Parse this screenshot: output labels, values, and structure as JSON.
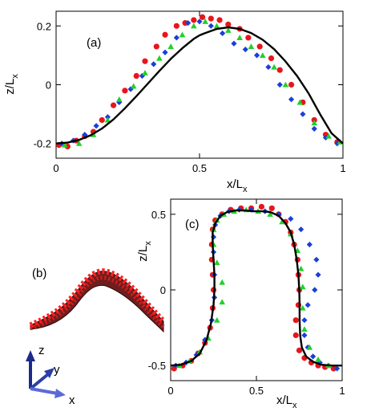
{
  "chart_data": [
    {
      "panel_label": "(a)",
      "type": "scatter",
      "xlabel_main": "x/L",
      "xlabel_sub": "x",
      "ylabel_main": "z/L",
      "ylabel_sub": "x",
      "xlim": [
        0,
        1
      ],
      "ylim": [
        -0.25,
        0.25
      ],
      "xticks": [
        {
          "value": 0,
          "label": "0"
        },
        {
          "value": 0.5,
          "label": "0.5"
        },
        {
          "value": 1,
          "label": "1"
        }
      ],
      "yticks": [
        {
          "value": -0.2,
          "label": "-0.2"
        },
        {
          "value": 0,
          "label": "0"
        },
        {
          "value": 0.2,
          "label": "0.2"
        }
      ],
      "grid": false,
      "curve": {
        "color": "#000000",
        "x": [
          0,
          0.04,
          0.08,
          0.12,
          0.16,
          0.2,
          0.24,
          0.28,
          0.32,
          0.36,
          0.4,
          0.44,
          0.48,
          0.5,
          0.52,
          0.56,
          0.6,
          0.64,
          0.68,
          0.72,
          0.76,
          0.8,
          0.84,
          0.88,
          0.92,
          0.96,
          1.0
        ],
        "y": [
          -0.2,
          -0.197,
          -0.188,
          -0.172,
          -0.149,
          -0.118,
          -0.08,
          -0.039,
          0.004,
          0.047,
          0.088,
          0.124,
          0.156,
          0.168,
          0.176,
          0.19,
          0.195,
          0.19,
          0.176,
          0.153,
          0.121,
          0.079,
          0.03,
          -0.029,
          -0.1,
          -0.165,
          -0.2
        ]
      },
      "series": [
        {
          "marker": "circle",
          "color": "#e8151b",
          "x": [
            0.01,
            0.04,
            0.07,
            0.1,
            0.13,
            0.16,
            0.2,
            0.24,
            0.28,
            0.31,
            0.35,
            0.38,
            0.42,
            0.45,
            0.48,
            0.51,
            0.54,
            0.57,
            0.6,
            0.64,
            0.67,
            0.71,
            0.75,
            0.78,
            0.82,
            0.86,
            0.9,
            0.94,
            0.98
          ],
          "y": [
            -0.205,
            -0.21,
            -0.19,
            -0.175,
            -0.16,
            -0.12,
            -0.07,
            -0.02,
            0.03,
            0.08,
            0.13,
            0.17,
            0.2,
            0.21,
            0.22,
            0.23,
            0.225,
            0.22,
            0.205,
            0.19,
            0.16,
            0.13,
            0.09,
            0.05,
            0.0,
            -0.06,
            -0.12,
            -0.17,
            -0.195
          ]
        },
        {
          "marker": "diamond",
          "color": "#1a3fd8",
          "x": [
            0.02,
            0.06,
            0.1,
            0.14,
            0.18,
            0.22,
            0.26,
            0.3,
            0.34,
            0.38,
            0.42,
            0.46,
            0.5,
            0.54,
            0.58,
            0.62,
            0.66,
            0.7,
            0.74,
            0.78,
            0.82,
            0.86,
            0.9,
            0.94,
            0.98
          ],
          "y": [
            -0.2,
            -0.19,
            -0.17,
            -0.14,
            -0.11,
            -0.06,
            -0.015,
            0.03,
            0.07,
            0.11,
            0.16,
            0.21,
            0.215,
            0.2,
            0.175,
            0.14,
            0.12,
            0.1,
            0.06,
            0.0,
            -0.05,
            -0.1,
            -0.15,
            -0.18,
            -0.2
          ]
        },
        {
          "marker": "triangle",
          "color": "#22d028",
          "x": [
            0.03,
            0.08,
            0.13,
            0.18,
            0.22,
            0.27,
            0.31,
            0.36,
            0.4,
            0.44,
            0.48,
            0.52,
            0.56,
            0.6,
            0.64,
            0.68,
            0.72,
            0.76,
            0.8,
            0.85,
            0.9,
            0.95,
            0.99
          ],
          "y": [
            -0.205,
            -0.2,
            -0.17,
            -0.12,
            -0.05,
            -0.005,
            0.04,
            0.09,
            0.13,
            0.17,
            0.2,
            0.215,
            0.2,
            0.185,
            0.16,
            0.13,
            0.1,
            0.06,
            0.0,
            -0.06,
            -0.13,
            -0.175,
            -0.195
          ]
        }
      ]
    },
    {
      "panel_label": "(b)",
      "type": "sketch",
      "axis_labels": {
        "z": "z",
        "y": "y",
        "x": "x"
      }
    },
    {
      "panel_label": "(c)",
      "type": "scatter",
      "xlabel_main": "x/L",
      "xlabel_sub": "x",
      "ylabel_main": "z/L",
      "ylabel_sub": "x",
      "xlim": [
        0,
        1
      ],
      "ylim": [
        -0.6,
        0.6
      ],
      "xticks": [
        {
          "value": 0,
          "label": "0"
        },
        {
          "value": 0.5,
          "label": "0.5"
        },
        {
          "value": 1,
          "label": "1"
        }
      ],
      "yticks": [
        {
          "value": -0.5,
          "label": "-0.5"
        },
        {
          "value": 0,
          "label": "0"
        },
        {
          "value": 0.5,
          "label": "0.5"
        }
      ],
      "grid": false,
      "curve": {
        "color": "#000000",
        "x": [
          0,
          0.06,
          0.12,
          0.17,
          0.21,
          0.235,
          0.25,
          0.255,
          0.255,
          0.25,
          0.245,
          0.245,
          0.26,
          0.29,
          0.33,
          0.38,
          0.43,
          0.48,
          0.53,
          0.58,
          0.63,
          0.67,
          0.7,
          0.72,
          0.735,
          0.745,
          0.75,
          0.752,
          0.752,
          0.755,
          0.765,
          0.79,
          0.83,
          0.88,
          0.94,
          1.0
        ],
        "z": [
          -0.5,
          -0.495,
          -0.47,
          -0.42,
          -0.33,
          -0.22,
          -0.1,
          0.0,
          0.1,
          0.2,
          0.3,
          0.38,
          0.44,
          0.49,
          0.515,
          0.525,
          0.525,
          0.52,
          0.52,
          0.515,
          0.49,
          0.44,
          0.38,
          0.3,
          0.2,
          0.1,
          0.0,
          -0.1,
          -0.2,
          -0.3,
          -0.38,
          -0.44,
          -0.475,
          -0.495,
          -0.5,
          -0.5
        ]
      },
      "series": [
        {
          "marker": "circle",
          "color": "#e8151b",
          "x": [
            0.02,
            0.07,
            0.12,
            0.16,
            0.2,
            0.23,
            0.245,
            0.25,
            0.245,
            0.24,
            0.24,
            0.245,
            0.26,
            0.3,
            0.35,
            0.41,
            0.47,
            0.53,
            0.59,
            0.63,
            0.67,
            0.7,
            0.72,
            0.74,
            0.745,
            0.75,
            0.745,
            0.73,
            0.73,
            0.75,
            0.78,
            0.82,
            0.86,
            0.9,
            0.95
          ],
          "z": [
            -0.52,
            -0.5,
            -0.47,
            -0.42,
            -0.35,
            -0.25,
            -0.12,
            0.0,
            0.1,
            0.2,
            0.3,
            0.4,
            0.46,
            0.5,
            0.53,
            0.54,
            0.54,
            0.55,
            0.54,
            0.5,
            0.45,
            0.38,
            0.3,
            0.2,
            0.1,
            0.0,
            -0.1,
            -0.2,
            -0.3,
            -0.4,
            -0.45,
            -0.48,
            -0.5,
            -0.51,
            -0.52
          ]
        },
        {
          "marker": "diamond",
          "color": "#1a3fd8",
          "x": [
            0.03,
            0.09,
            0.15,
            0.2,
            0.24,
            0.255,
            0.255,
            0.25,
            0.25,
            0.26,
            0.29,
            0.34,
            0.4,
            0.47,
            0.55,
            0.63,
            0.7,
            0.76,
            0.81,
            0.85,
            0.86,
            0.84,
            0.8,
            0.78,
            0.78,
            0.8,
            0.83,
            0.87,
            0.92,
            0.97
          ],
          "z": [
            -0.5,
            -0.48,
            -0.43,
            -0.33,
            -0.2,
            -0.05,
            0.1,
            0.25,
            0.35,
            0.43,
            0.49,
            0.52,
            0.53,
            0.53,
            0.52,
            0.5,
            0.47,
            0.4,
            0.3,
            0.2,
            0.1,
            0.0,
            -0.1,
            -0.2,
            -0.3,
            -0.38,
            -0.44,
            -0.48,
            -0.5,
            -0.52
          ]
        },
        {
          "marker": "triangle",
          "color": "#22d028",
          "x": [
            0.05,
            0.11,
            0.17,
            0.22,
            0.27,
            0.3,
            0.3,
            0.27,
            0.25,
            0.25,
            0.27,
            0.31,
            0.37,
            0.44,
            0.51,
            0.58,
            0.65,
            0.7,
            0.74,
            0.76,
            0.77,
            0.77,
            0.78,
            0.81,
            0.86,
            0.92
          ],
          "z": [
            -0.5,
            -0.47,
            -0.41,
            -0.32,
            -0.2,
            -0.08,
            0.05,
            0.18,
            0.3,
            0.4,
            0.46,
            0.5,
            0.52,
            0.53,
            0.52,
            0.5,
            0.45,
            0.37,
            0.26,
            0.14,
            0.02,
            -0.12,
            -0.26,
            -0.38,
            -0.46,
            -0.5
          ]
        }
      ]
    }
  ]
}
